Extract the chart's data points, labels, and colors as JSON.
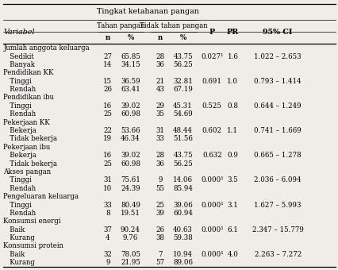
{
  "title": "Tingkat ketahanan pangan",
  "col_header_1": "Tahan pangan",
  "col_header_2": "Tidak tahan pangan",
  "col_n1": "n",
  "col_pct1": "%",
  "col_n2": "n",
  "col_pct2": "%",
  "col_p": "P",
  "col_pr": "PR",
  "col_ci": "95% CI",
  "col_var": "Variabel",
  "rows": [
    {
      "label": "Jumlah anggota keluarga",
      "indent": false,
      "n1": "",
      "p1": "",
      "n2": "",
      "p2": "",
      "p": "",
      "pr": "",
      "ci": ""
    },
    {
      "label": "Sedikit",
      "indent": true,
      "n1": "27",
      "p1": "65.85",
      "n2": "28",
      "p2": "43.75",
      "p": "0.027¹",
      "pr": "1.6",
      "ci": "1.022 – 2.653"
    },
    {
      "label": "Banyak",
      "indent": true,
      "n1": "14",
      "p1": "34.15",
      "n2": "36",
      "p2": "56.25",
      "p": "",
      "pr": "",
      "ci": ""
    },
    {
      "label": "Pendidikan KK",
      "indent": false,
      "n1": "",
      "p1": "",
      "n2": "",
      "p2": "",
      "p": "",
      "pr": "",
      "ci": ""
    },
    {
      "label": "Tinggi",
      "indent": true,
      "n1": "15",
      "p1": "36.59",
      "n2": "21",
      "p2": "32.81",
      "p": "0.691",
      "pr": "1.0",
      "ci": "0.793 – 1.414"
    },
    {
      "label": "Rendah",
      "indent": true,
      "n1": "26",
      "p1": "63.41",
      "n2": "43",
      "p2": "67.19",
      "p": "",
      "pr": "",
      "ci": ""
    },
    {
      "label": "Pendidikan ibu",
      "indent": false,
      "n1": "",
      "p1": "",
      "n2": "",
      "p2": "",
      "p": "",
      "pr": "",
      "ci": ""
    },
    {
      "label": "Tinggi",
      "indent": true,
      "n1": "16",
      "p1": "39.02",
      "n2": "29",
      "p2": "45.31",
      "p": "0.525",
      "pr": "0.8",
      "ci": "0.644 – 1.249"
    },
    {
      "label": "Rendah",
      "indent": true,
      "n1": "25",
      "p1": "60.98",
      "n2": "35",
      "p2": "54.69",
      "p": "",
      "pr": "",
      "ci": ""
    },
    {
      "label": "Pekerjaan KK",
      "indent": false,
      "n1": "",
      "p1": "",
      "n2": "",
      "p2": "",
      "p": "",
      "pr": "",
      "ci": ""
    },
    {
      "label": "Bekerja",
      "indent": true,
      "n1": "22",
      "p1": "53.66",
      "n2": "31",
      "p2": "48.44",
      "p": "0.602",
      "pr": "1.1",
      "ci": "0.741 – 1.669"
    },
    {
      "label": "Tidak bekerja",
      "indent": true,
      "n1": "19",
      "p1": "46.34",
      "n2": "33",
      "p2": "51.56",
      "p": "",
      "pr": "",
      "ci": ""
    },
    {
      "label": "Pekerjaan ibu",
      "indent": false,
      "n1": "",
      "p1": "",
      "n2": "",
      "p2": "",
      "p": "",
      "pr": "",
      "ci": ""
    },
    {
      "label": "Bekerja",
      "indent": true,
      "n1": "16",
      "p1": "39.02",
      "n2": "28",
      "p2": "43.75",
      "p": "0.632",
      "pr": "0.9",
      "ci": "0.665 – 1.278"
    },
    {
      "label": "Tidak bekerja",
      "indent": true,
      "n1": "25",
      "p1": "60.98",
      "n2": "36",
      "p2": "56.25",
      "p": "",
      "pr": "",
      "ci": ""
    },
    {
      "label": "Akses pangan",
      "indent": false,
      "n1": "",
      "p1": "",
      "n2": "",
      "p2": "",
      "p": "",
      "pr": "",
      "ci": ""
    },
    {
      "label": "Tinggi",
      "indent": true,
      "n1": "31",
      "p1": "75.61",
      "n2": "9",
      "p2": "14.06",
      "p": "0.000¹",
      "pr": "3.5",
      "ci": "2.036 – 6.094"
    },
    {
      "label": "Rendah",
      "indent": true,
      "n1": "10",
      "p1": "24.39",
      "n2": "55",
      "p2": "85.94",
      "p": "",
      "pr": "",
      "ci": ""
    },
    {
      "label": "Pengeluaran keluarga",
      "indent": false,
      "n1": "",
      "p1": "",
      "n2": "",
      "p2": "",
      "p": "",
      "pr": "",
      "ci": ""
    },
    {
      "label": "Tinggi",
      "indent": true,
      "n1": "33",
      "p1": "80.49",
      "n2": "25",
      "p2": "39.06",
      "p": "0.000¹",
      "pr": "3.1",
      "ci": "1.627 – 5.993"
    },
    {
      "label": "Rendah",
      "indent": true,
      "n1": "8",
      "p1": "19.51",
      "n2": "39",
      "p2": "60.94",
      "p": "",
      "pr": "",
      "ci": ""
    },
    {
      "label": "Konsumsi energi",
      "indent": false,
      "n1": "",
      "p1": "",
      "n2": "",
      "p2": "",
      "p": "",
      "pr": "",
      "ci": ""
    },
    {
      "label": "Baik",
      "indent": true,
      "n1": "37",
      "p1": "90.24",
      "n2": "26",
      "p2": "40.63",
      "p": "0.000¹",
      "pr": "6.1",
      "ci": "2.347 – 15.779"
    },
    {
      "label": "Kurang",
      "indent": true,
      "n1": "4",
      "p1": "9.76",
      "n2": "38",
      "p2": "59.38",
      "p": "",
      "pr": "",
      "ci": ""
    },
    {
      "label": "Konsumsi protein",
      "indent": false,
      "n1": "",
      "p1": "",
      "n2": "",
      "p2": "",
      "p": "",
      "pr": "",
      "ci": ""
    },
    {
      "label": "Baik",
      "indent": true,
      "n1": "32",
      "p1": "78.05",
      "n2": "7",
      "p2": "10.94",
      "p": "0.000¹",
      "pr": "4.0",
      "ci": "2.263 – 7.272"
    },
    {
      "label": "Kurang",
      "indent": true,
      "n1": "9",
      "p1": "21.95",
      "n2": "57",
      "p2": "89.06",
      "p": "",
      "pr": "",
      "ci": ""
    }
  ],
  "bg_color": "#f0ede8",
  "text_color": "#000000",
  "font_size": 6.2,
  "header_font_size": 6.8
}
